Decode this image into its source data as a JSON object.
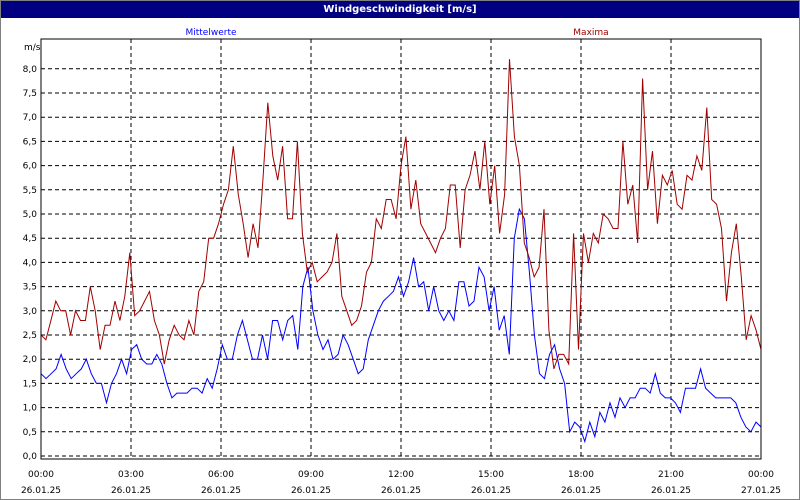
{
  "window": {
    "title": "Windgeschwindigkeit [m/s]"
  },
  "chart_data": {
    "type": "line",
    "title": "Windgeschwindigkeit [m/s]",
    "ylabel": "m/s",
    "xlabel": "",
    "ylim": [
      0,
      8.5
    ],
    "xlim": [
      0,
      24
    ],
    "grid": true,
    "legend_placement": "top (series names above plot)",
    "y_ticks": [
      "0,0",
      "0,5",
      "1,0",
      "1,5",
      "2,0",
      "2,5",
      "3,0",
      "3,5",
      "4,0",
      "4,5",
      "5,0",
      "5,5",
      "6,0",
      "6,5",
      "7,0",
      "7,5",
      "8,0"
    ],
    "x_ticks": [
      {
        "t": "00:00",
        "d": "26.01.25"
      },
      {
        "t": "03:00",
        "d": "26.01.25"
      },
      {
        "t": "06:00",
        "d": "26.01.25"
      },
      {
        "t": "09:00",
        "d": "26.01.25"
      },
      {
        "t": "12:00",
        "d": "26.01.25"
      },
      {
        "t": "15:00",
        "d": "26.01.25"
      },
      {
        "t": "18:00",
        "d": "26.01.25"
      },
      {
        "t": "21:00",
        "d": "26.01.25"
      },
      {
        "t": "00:00",
        "d": "27.01.25"
      }
    ],
    "series": [
      {
        "name": "Mittelwerte",
        "color": "#0000ff",
        "values": [
          1.7,
          1.6,
          1.7,
          1.8,
          2.1,
          1.8,
          1.6,
          1.7,
          1.8,
          2.0,
          1.7,
          1.5,
          1.5,
          1.1,
          1.5,
          1.7,
          2.0,
          1.7,
          2.2,
          2.3,
          2.0,
          1.9,
          1.9,
          2.1,
          1.9,
          1.5,
          1.2,
          1.3,
          1.3,
          1.3,
          1.4,
          1.4,
          1.3,
          1.6,
          1.4,
          1.8,
          2.3,
          2.0,
          2.0,
          2.5,
          2.8,
          2.4,
          2.0,
          2.0,
          2.5,
          2.0,
          2.8,
          2.8,
          2.4,
          2.8,
          2.9,
          2.2,
          3.5,
          3.9,
          3.0,
          2.5,
          2.2,
          2.4,
          2.0,
          2.1,
          2.5,
          2.3,
          2.0,
          1.7,
          1.8,
          2.4,
          2.7,
          3.0,
          3.2,
          3.3,
          3.4,
          3.7,
          3.3,
          3.6,
          4.1,
          3.5,
          3.6,
          3.0,
          3.5,
          3.0,
          2.8,
          3.0,
          2.8,
          3.6,
          3.6,
          3.1,
          3.2,
          3.9,
          3.7,
          3.0,
          3.5,
          2.6,
          2.9,
          2.1,
          4.5,
          5.1,
          4.9,
          3.8,
          2.5,
          1.7,
          1.6,
          2.1,
          2.3,
          1.8,
          1.5,
          0.5,
          0.7,
          0.6,
          0.3,
          0.7,
          0.4,
          0.9,
          0.7,
          1.1,
          0.8,
          1.2,
          1.0,
          1.2,
          1.2,
          1.4,
          1.4,
          1.3,
          1.7,
          1.3,
          1.2,
          1.2,
          1.1,
          0.9,
          1.4,
          1.4,
          1.4,
          1.8,
          1.4,
          1.3,
          1.2,
          1.2,
          1.2,
          1.2,
          1.1,
          0.8,
          0.6,
          0.5,
          0.7,
          0.6
        ]
      },
      {
        "name": "Maxima",
        "color": "#a00000",
        "values": [
          2.5,
          2.4,
          2.8,
          3.2,
          3.0,
          3.0,
          2.5,
          3.0,
          2.8,
          2.8,
          3.5,
          3.0,
          2.2,
          2.7,
          2.7,
          3.2,
          2.8,
          3.3,
          4.2,
          2.9,
          3.0,
          3.2,
          3.4,
          2.8,
          2.5,
          1.9,
          2.4,
          2.7,
          2.5,
          2.4,
          2.8,
          2.5,
          3.4,
          3.6,
          4.5,
          4.5,
          4.8,
          5.2,
          5.5,
          6.4,
          5.4,
          4.8,
          4.1,
          4.8,
          4.3,
          5.7,
          7.3,
          6.2,
          5.7,
          6.4,
          4.9,
          4.9,
          6.5,
          4.6,
          3.8,
          4.0,
          3.6,
          3.7,
          3.8,
          4.0,
          4.6,
          3.3,
          3.0,
          2.7,
          2.8,
          3.1,
          3.8,
          4.0,
          4.9,
          4.7,
          5.3,
          5.3,
          4.9,
          6.0,
          6.6,
          5.1,
          5.7,
          4.8,
          4.6,
          4.4,
          4.2,
          4.5,
          4.7,
          5.6,
          5.6,
          4.3,
          5.5,
          5.8,
          6.3,
          5.5,
          6.5,
          5.2,
          6.0,
          4.6,
          5.4,
          8.2,
          6.6,
          6.0,
          4.4,
          4.1,
          3.7,
          3.9,
          5.1,
          2.6,
          1.8,
          2.1,
          2.1,
          1.9,
          4.6,
          2.2,
          4.6,
          4.0,
          4.6,
          4.4,
          5.0,
          4.9,
          4.7,
          4.7,
          6.5,
          5.2,
          5.6,
          4.4,
          7.8,
          5.5,
          6.3,
          4.8,
          5.8,
          5.6,
          5.9,
          5.2,
          5.1,
          5.8,
          5.7,
          6.2,
          5.9,
          7.2,
          5.3,
          5.2,
          4.7,
          3.2,
          4.2,
          4.8,
          3.7,
          2.4,
          2.9,
          2.6,
          2.2
        ]
      }
    ]
  }
}
